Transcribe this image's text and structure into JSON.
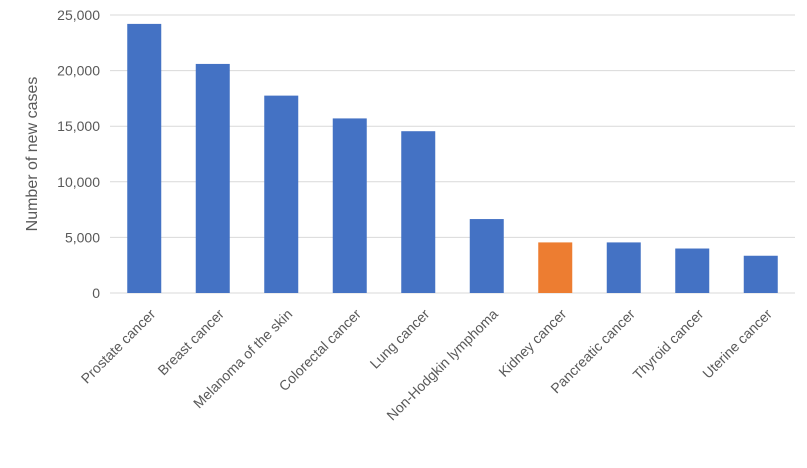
{
  "chart_data": {
    "type": "bar",
    "title": "",
    "xlabel": "",
    "ylabel": "Number of new cases",
    "ylim": [
      0,
      25000
    ],
    "yticks": [
      0,
      5000,
      10000,
      15000,
      20000,
      25000
    ],
    "ytick_labels": [
      "0",
      "5,000",
      "10,000",
      "15,000",
      "20,000",
      "25,000"
    ],
    "grid": true,
    "legend": "none",
    "categories": [
      "Prostate cancer",
      "Breast cancer",
      "Melanoma of the skin",
      "Colorectal cancer",
      "Lung cancer",
      "Non-Hodgkin lymphoma",
      "Kidney cancer",
      "Pancreatic cancer",
      "Thyroid cancer",
      "Uterine cancer"
    ],
    "values": [
      24200,
      20600,
      17750,
      15700,
      14550,
      6650,
      4550,
      4550,
      4000,
      3350
    ],
    "highlight_category": "Kidney cancer",
    "bar_color": "#4472C4",
    "highlight_color": "#ED7D31",
    "grid_color": "#D9D9D9"
  }
}
